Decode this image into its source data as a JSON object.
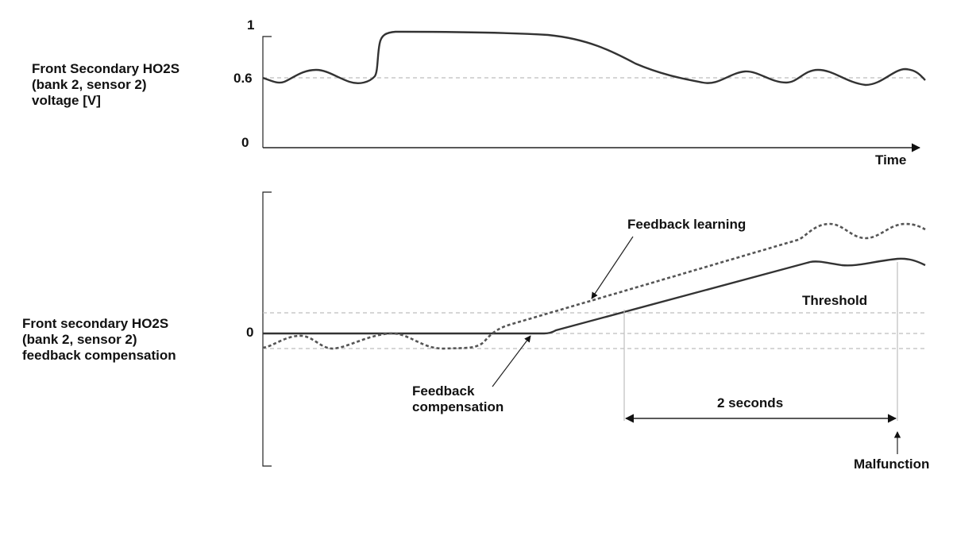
{
  "top_chart": {
    "ylabel_lines": [
      "Front Secondary HO2S",
      "(bank 2, sensor 2)",
      "voltage [V]"
    ],
    "ticks": {
      "top": "1",
      "mid": "0.6",
      "bottom": "0"
    },
    "xlabel": "Time"
  },
  "bottom_chart": {
    "ylabel_lines": [
      "Front secondary HO2S",
      "(bank 2, sensor 2)",
      "feedback compensation"
    ],
    "zero_tick": "0",
    "labels": {
      "feedback_learning": "Feedback learning",
      "threshold": "Threshold",
      "feedback_compensation_lines": [
        "Feedback",
        "compensation"
      ],
      "duration": "2 seconds",
      "malfunction": "Malfunction"
    }
  },
  "colors": {
    "signal": "#333333",
    "guide": "#bdbdbd",
    "text": "#111111"
  }
}
